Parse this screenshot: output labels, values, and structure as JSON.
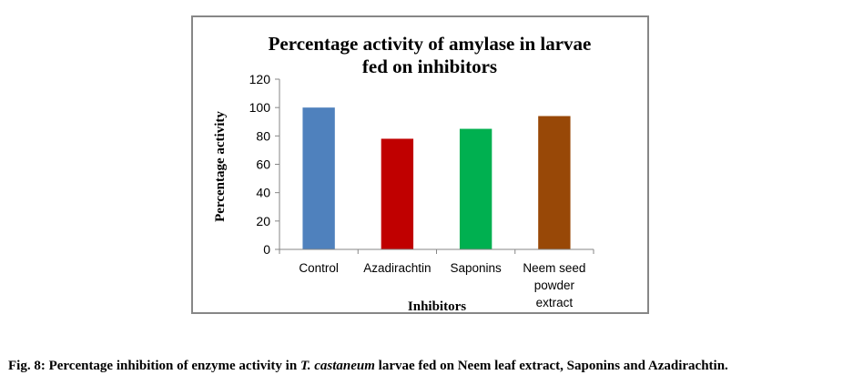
{
  "chart_data": {
    "type": "bar",
    "title_lines": [
      "Percentage activity of amylase in larvae",
      "fed on inhibitors"
    ],
    "xlabel": "Inhibitors",
    "ylabel": "Percentage activity",
    "ylim": [
      0,
      120
    ],
    "yticks": [
      0,
      20,
      40,
      60,
      80,
      100,
      120
    ],
    "categories": [
      [
        "Control"
      ],
      [
        "Azadirachtin"
      ],
      [
        "Saponins"
      ],
      [
        "Neem seed",
        "powder",
        "extract"
      ]
    ],
    "values": [
      100,
      78,
      85,
      94
    ],
    "colors": [
      "#4f81bd",
      "#c00000",
      "#00b050",
      "#984807"
    ],
    "grid": false,
    "legend": "none"
  },
  "caption": {
    "prefix": "Fig. 8: Percentage inhibition of enzyme activity in ",
    "species": "T. castaneum",
    "suffix": " larvae fed on Neem leaf extract, Saponins and Azadirachtin."
  }
}
